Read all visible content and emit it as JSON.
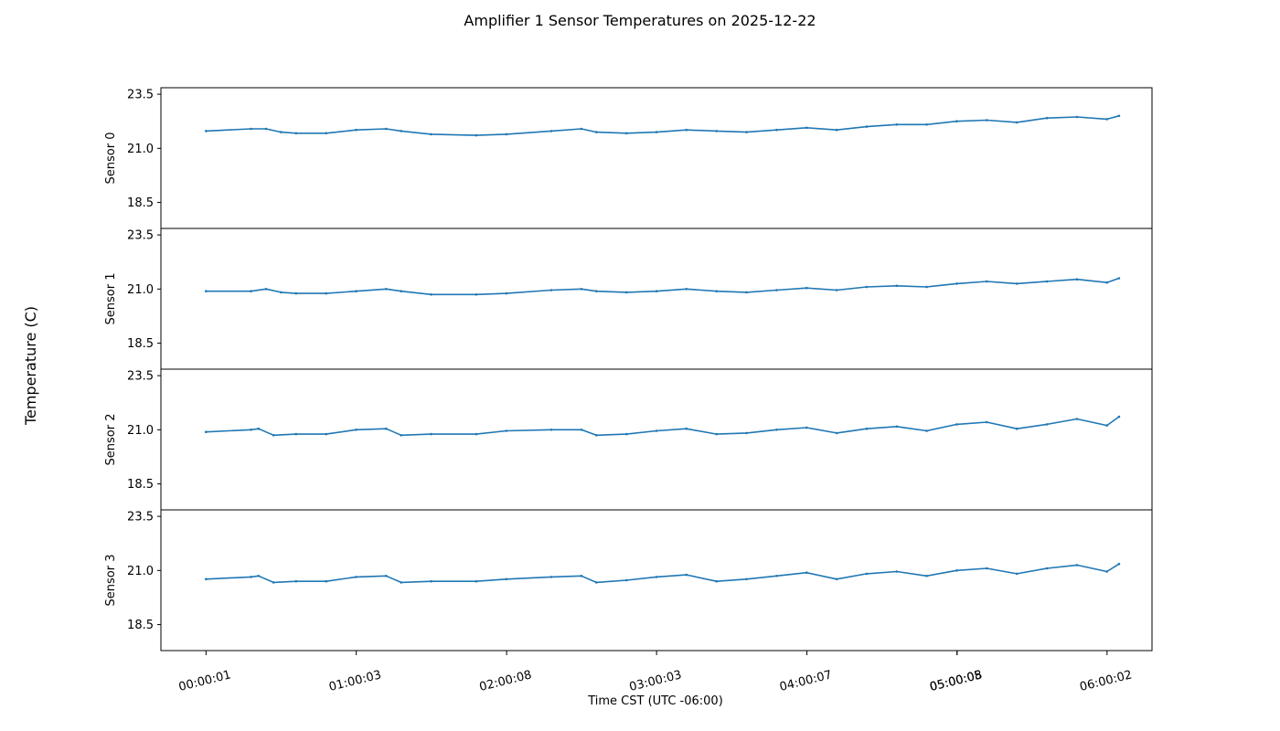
{
  "chart_data": {
    "type": "line",
    "title": "Amplifier 1 Sensor Temperatures on 2025-12-22",
    "ylabel": "Temperature (C)",
    "xlabel": "Time CST (UTC -06:00)",
    "x_range_hours": [
      -0.3,
      6.3
    ],
    "x_ticks": [
      {
        "hour": 0.0003,
        "label": "00:00:01"
      },
      {
        "hour": 1.0008,
        "label": "01:00:03"
      },
      {
        "hour": 2.0022,
        "label": "02:00:08"
      },
      {
        "hour": 3.0008,
        "label": "03:00:03"
      },
      {
        "hour": 4.0019,
        "label": "04:00:07"
      },
      {
        "hour": 5.0014,
        "label": "05:00:05"
      },
      {
        "hour": 5.0022,
        "label": "05:00:08"
      },
      {
        "hour": 6.0006,
        "label": "06:00:02"
      }
    ],
    "ylim": [
      17.3,
      23.8
    ],
    "y_ticks": [
      18.5,
      21.0,
      23.5
    ],
    "y_tick_labels": [
      "18.5",
      "21.0",
      "23.5"
    ],
    "color": "#1f77b4",
    "series": [
      {
        "name": "Sensor 0",
        "x": [
          0,
          0.3,
          0.4,
          0.5,
          0.6,
          0.8,
          1.0,
          1.2,
          1.3,
          1.5,
          1.8,
          2.0,
          2.3,
          2.5,
          2.6,
          2.8,
          3.0,
          3.2,
          3.4,
          3.6,
          3.8,
          4.0,
          4.2,
          4.4,
          4.6,
          4.8,
          5.0,
          5.2,
          5.4,
          5.6,
          5.8,
          6.0,
          6.08
        ],
        "values": [
          21.8,
          21.9,
          21.9,
          21.75,
          21.7,
          21.7,
          21.85,
          21.9,
          21.8,
          21.65,
          21.6,
          21.65,
          21.8,
          21.9,
          21.75,
          21.7,
          21.75,
          21.85,
          21.8,
          21.75,
          21.85,
          21.95,
          21.85,
          22.0,
          22.1,
          22.1,
          22.25,
          22.3,
          22.2,
          22.4,
          22.45,
          22.35,
          22.5
        ]
      },
      {
        "name": "Sensor 1",
        "x": [
          0,
          0.3,
          0.4,
          0.5,
          0.6,
          0.8,
          1.0,
          1.2,
          1.3,
          1.5,
          1.8,
          2.0,
          2.3,
          2.5,
          2.6,
          2.8,
          3.0,
          3.2,
          3.4,
          3.6,
          3.8,
          4.0,
          4.2,
          4.4,
          4.6,
          4.8,
          5.0,
          5.2,
          5.4,
          5.6,
          5.8,
          6.0,
          6.08
        ],
        "values": [
          20.9,
          20.9,
          21.0,
          20.85,
          20.8,
          20.8,
          20.9,
          21.0,
          20.9,
          20.75,
          20.75,
          20.8,
          20.95,
          21.0,
          20.9,
          20.85,
          20.9,
          21.0,
          20.9,
          20.85,
          20.95,
          21.05,
          20.95,
          21.1,
          21.15,
          21.1,
          21.25,
          21.35,
          21.25,
          21.35,
          21.45,
          21.3,
          21.5
        ]
      },
      {
        "name": "Sensor 2",
        "x": [
          0,
          0.3,
          0.35,
          0.45,
          0.6,
          0.8,
          1.0,
          1.2,
          1.3,
          1.5,
          1.8,
          2.0,
          2.3,
          2.5,
          2.6,
          2.8,
          3.0,
          3.2,
          3.4,
          3.6,
          3.8,
          4.0,
          4.2,
          4.4,
          4.6,
          4.8,
          5.0,
          5.2,
          5.4,
          5.6,
          5.8,
          6.0,
          6.08
        ],
        "values": [
          20.9,
          21.0,
          21.05,
          20.75,
          20.8,
          20.8,
          21.0,
          21.05,
          20.75,
          20.8,
          20.8,
          20.95,
          21.0,
          21.0,
          20.75,
          20.8,
          20.95,
          21.05,
          20.8,
          20.85,
          21.0,
          21.1,
          20.85,
          21.05,
          21.15,
          20.95,
          21.25,
          21.35,
          21.05,
          21.25,
          21.5,
          21.2,
          21.6
        ]
      },
      {
        "name": "Sensor 3",
        "x": [
          0,
          0.3,
          0.35,
          0.45,
          0.6,
          0.8,
          1.0,
          1.2,
          1.3,
          1.5,
          1.8,
          2.0,
          2.3,
          2.5,
          2.6,
          2.8,
          3.0,
          3.2,
          3.4,
          3.6,
          3.8,
          4.0,
          4.2,
          4.4,
          4.6,
          4.8,
          5.0,
          5.2,
          5.4,
          5.6,
          5.8,
          6.0,
          6.08
        ],
        "values": [
          20.6,
          20.7,
          20.75,
          20.45,
          20.5,
          20.5,
          20.7,
          20.75,
          20.45,
          20.5,
          20.5,
          20.6,
          20.7,
          20.75,
          20.45,
          20.55,
          20.7,
          20.8,
          20.5,
          20.6,
          20.75,
          20.9,
          20.6,
          20.85,
          20.95,
          20.75,
          21.0,
          21.1,
          20.85,
          21.1,
          21.25,
          20.95,
          21.3
        ]
      }
    ]
  }
}
